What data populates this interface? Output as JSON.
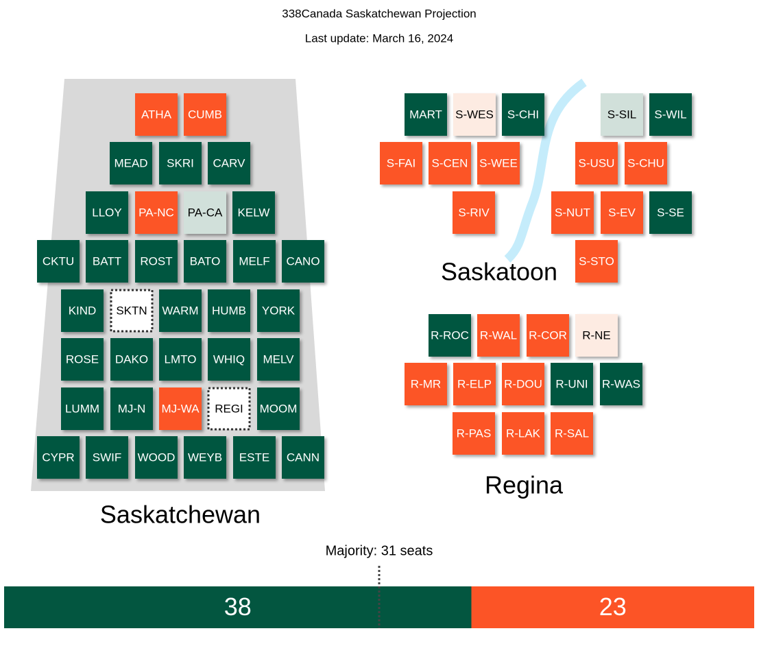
{
  "header": {
    "title": "338Canada Saskatchewan Projection",
    "subtitle": "Last update: March 16, 2024"
  },
  "regions": [
    {
      "name": "Saskatchewan",
      "tiles": [
        {
          "label": "ATHA",
          "color": "#fc5426"
        },
        {
          "label": "CUMB",
          "color": "#fc5426"
        },
        {
          "label": "MEAD",
          "color": "#035640"
        },
        {
          "label": "SKRI",
          "color": "#035640"
        },
        {
          "label": "CARV",
          "color": "#035640"
        },
        {
          "label": "LLOY",
          "color": "#035640"
        },
        {
          "label": "PA-NC",
          "color": "#fc5426"
        },
        {
          "label": "PA-CA",
          "color": "#d1e0da"
        },
        {
          "label": "KELW",
          "color": "#035640"
        },
        {
          "label": "CKTU",
          "color": "#035640"
        },
        {
          "label": "BATT",
          "color": "#035640"
        },
        {
          "label": "ROST",
          "color": "#035640"
        },
        {
          "label": "BATO",
          "color": "#035640"
        },
        {
          "label": "MELF",
          "color": "#035640"
        },
        {
          "label": "CANO",
          "color": "#035640"
        },
        {
          "label": "KIND",
          "color": "#035640"
        },
        {
          "label": "SKTN",
          "color": "#ffffff",
          "border": "dotted"
        },
        {
          "label": "WARM",
          "color": "#035640"
        },
        {
          "label": "HUMB",
          "color": "#035640"
        },
        {
          "label": "YORK",
          "color": "#035640"
        },
        {
          "label": "ROSE",
          "color": "#035640"
        },
        {
          "label": "DAKO",
          "color": "#035640"
        },
        {
          "label": "LMTO",
          "color": "#035640"
        },
        {
          "label": "WHIQ",
          "color": "#035640"
        },
        {
          "label": "MELV",
          "color": "#035640"
        },
        {
          "label": "LUMM",
          "color": "#035640"
        },
        {
          "label": "MJ-N",
          "color": "#035640"
        },
        {
          "label": "MJ-WA",
          "color": "#fc5426"
        },
        {
          "label": "REGI",
          "color": "#ffffff",
          "border": "dotted"
        },
        {
          "label": "MOOM",
          "color": "#035640"
        },
        {
          "label": "CYPR",
          "color": "#035640"
        },
        {
          "label": "SWIF",
          "color": "#035640"
        },
        {
          "label": "WOOD",
          "color": "#035640"
        },
        {
          "label": "WEYB",
          "color": "#035640"
        },
        {
          "label": "ESTE",
          "color": "#035640"
        },
        {
          "label": "CANN",
          "color": "#035640"
        }
      ]
    },
    {
      "name": "Saskatoon",
      "tiles": [
        {
          "label": "MART",
          "color": "#035640"
        },
        {
          "label": "S-WES",
          "color": "#fdebe2"
        },
        {
          "label": "S-CHI",
          "color": "#035640"
        },
        {
          "label": "S-SIL",
          "color": "#d1e0da"
        },
        {
          "label": "S-WIL",
          "color": "#035640"
        },
        {
          "label": "S-FAI",
          "color": "#fc5426"
        },
        {
          "label": "S-CEN",
          "color": "#fc5426"
        },
        {
          "label": "S-WEE",
          "color": "#fc5426"
        },
        {
          "label": "S-USU",
          "color": "#fc5426"
        },
        {
          "label": "S-CHU",
          "color": "#fc5426"
        },
        {
          "label": "S-RIV",
          "color": "#fc5426"
        },
        {
          "label": "S-NUT",
          "color": "#fc5426"
        },
        {
          "label": "S-EV",
          "color": "#fc5426"
        },
        {
          "label": "S-SE",
          "color": "#035640"
        },
        {
          "label": "S-STO",
          "color": "#fc5426"
        }
      ]
    },
    {
      "name": "Regina",
      "tiles": [
        {
          "label": "R-ROC",
          "color": "#035640"
        },
        {
          "label": "R-WAL",
          "color": "#fc5426"
        },
        {
          "label": "R-COR",
          "color": "#fc5426"
        },
        {
          "label": "R-NE",
          "color": "#fdebe2"
        },
        {
          "label": "R-MR",
          "color": "#fc5426"
        },
        {
          "label": "R-ELP",
          "color": "#fc5426"
        },
        {
          "label": "R-DOU",
          "color": "#fc5426"
        },
        {
          "label": "R-UNI",
          "color": "#035640"
        },
        {
          "label": "R-WAS",
          "color": "#035640"
        },
        {
          "label": "R-PAS",
          "color": "#fc5426"
        },
        {
          "label": "R-LAK",
          "color": "#fc5426"
        },
        {
          "label": "R-SAL",
          "color": "#fc5426"
        }
      ]
    }
  ],
  "majority": {
    "label": "Majority: 31 seats"
  },
  "seat_bar": [
    {
      "value": 38,
      "color": "#035640"
    },
    {
      "value": 23,
      "color": "#fc5426"
    }
  ]
}
